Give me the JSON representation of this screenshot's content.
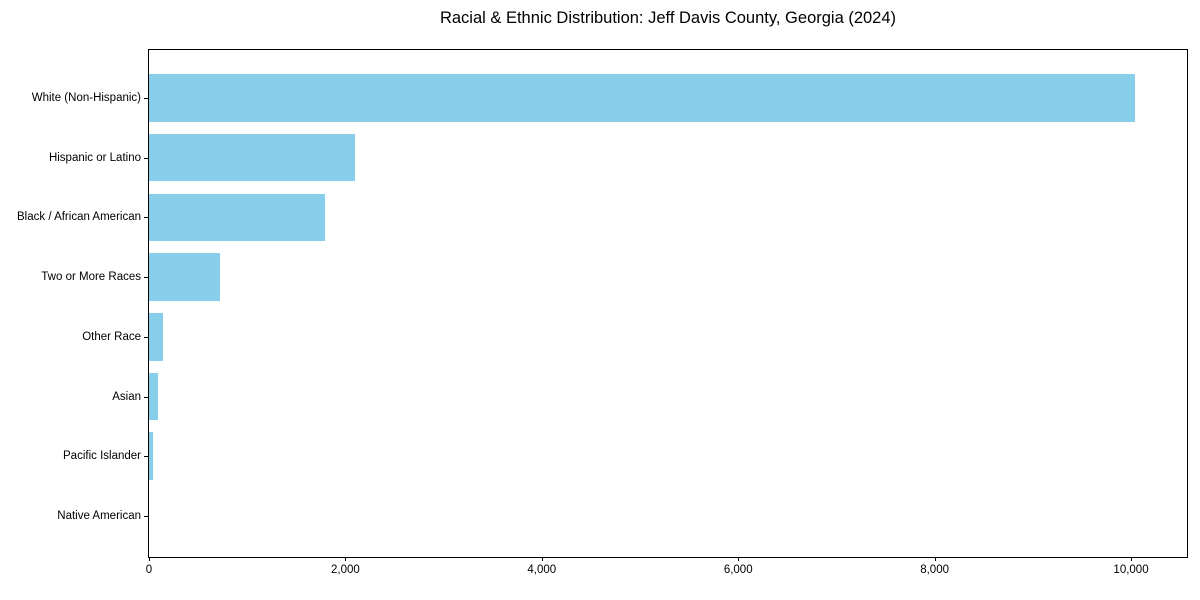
{
  "chart_data": {
    "type": "bar",
    "orientation": "horizontal",
    "title": "Racial & Ethnic Distribution: Jeff Davis County, Georgia (2024)",
    "xlabel": "",
    "ylabel": "",
    "categories": [
      "White (Non-Hispanic)",
      "Hispanic or Latino",
      "Black / African American",
      "Two or More Races",
      "Other Race",
      "Asian",
      "Pacific Islander",
      "Native American"
    ],
    "values": [
      10040,
      2100,
      1790,
      720,
      145,
      90,
      40,
      0
    ],
    "xlim": [
      0,
      10570
    ],
    "x_ticks": [
      {
        "value": 0,
        "label": "0"
      },
      {
        "value": 2000,
        "label": "2,000"
      },
      {
        "value": 4000,
        "label": "4,000"
      },
      {
        "value": 6000,
        "label": "6,000"
      },
      {
        "value": 8000,
        "label": "8,000"
      },
      {
        "value": 10000,
        "label": "10,000"
      }
    ],
    "grid": false,
    "legend": null,
    "colors": {
      "bar": "#87CEEB",
      "axis": "#000000",
      "text": "#000000",
      "background": "#FFFFFF"
    }
  }
}
